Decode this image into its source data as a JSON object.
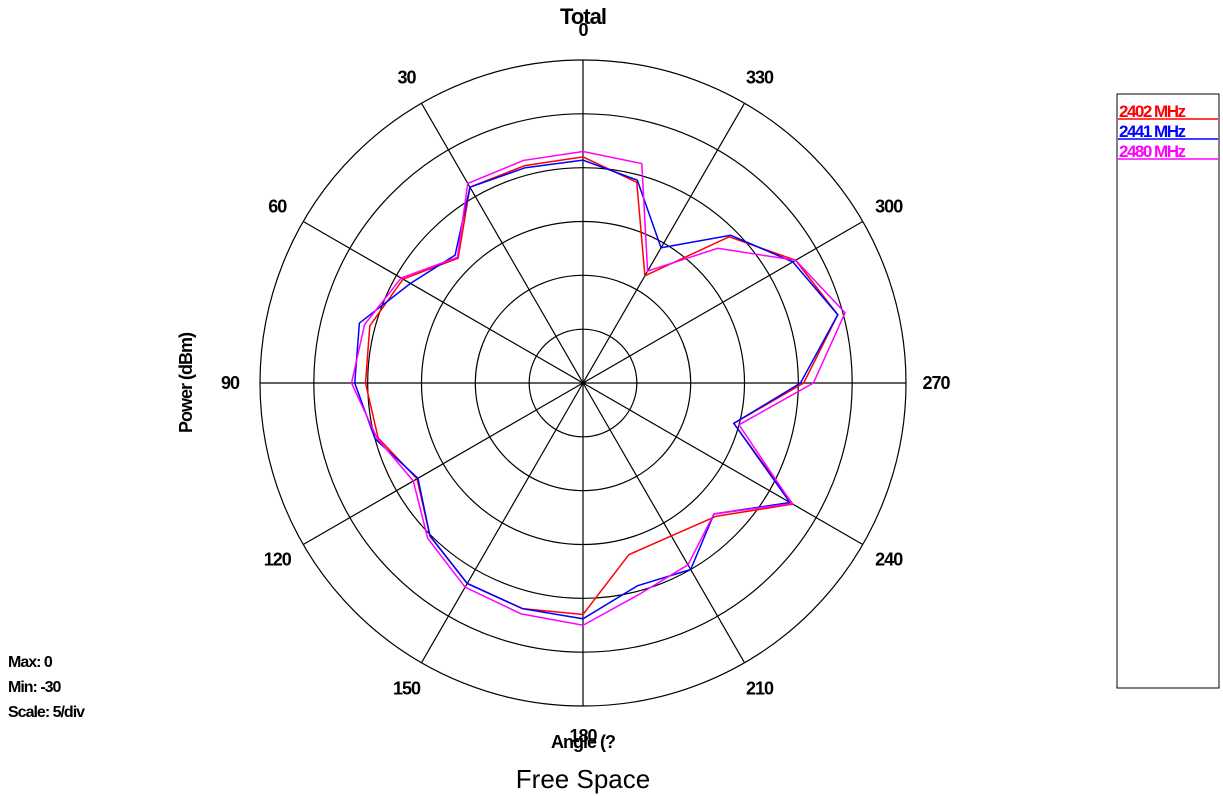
{
  "chart_data": {
    "type": "polar",
    "title": "Total",
    "subtitle": "Free Space",
    "xlabel": "Angle (?",
    "ylabel": "Power (dBm)",
    "rlim": [
      -30,
      0
    ],
    "r_step": 5,
    "angle_direction": "counterclockwise",
    "zero_angle": "top",
    "angle_ticks": [
      0,
      30,
      60,
      90,
      120,
      150,
      180,
      210,
      240,
      270,
      300,
      330
    ],
    "grid": true,
    "legend_position": "right",
    "stats": {
      "max": "Max: 0",
      "min": "Min: -30",
      "scale": "Scale: 5/div"
    },
    "angles": [
      0,
      15,
      30,
      45,
      60,
      75,
      90,
      105,
      120,
      135,
      150,
      165,
      180,
      195,
      210,
      225,
      240,
      255,
      270,
      285,
      300,
      315,
      330,
      345
    ],
    "series": [
      {
        "name": "2402 MHz",
        "color": "#ff0000",
        "values": [
          -9,
          -9.1,
          -9,
          -13.6,
          -10.7,
          -9.5,
          -9.8,
          -10.3,
          -12.2,
          -9.9,
          -8.5,
          -8.3,
          -8.5,
          -13.5,
          -13.6,
          -12.5,
          -7.5,
          -15.5,
          -9.5,
          -5.5,
          -7.2,
          -10.8,
          -18.5,
          -10.7
        ]
      },
      {
        "name": "2441 MHz",
        "color": "#0000ff",
        "values": [
          -9.3,
          -9.3,
          -9,
          -13.2,
          -11.5,
          -8.5,
          -8.8,
          -10,
          -12.3,
          -9.9,
          -8.5,
          -8.3,
          -8.1,
          -10.5,
          -10,
          -12.8,
          -7.8,
          -15.5,
          -9.8,
          -5.5,
          -7.5,
          -10.6,
          -15.5,
          -10.5
        ]
      },
      {
        "name": "2480 MHz",
        "color": "#ff00ff",
        "values": [
          -8.5,
          -8.6,
          -8.6,
          -13.5,
          -10.5,
          -9,
          -8.5,
          -10.2,
          -11.8,
          -9.6,
          -8.1,
          -7.8,
          -7.5,
          -9.7,
          -10.5,
          -12.8,
          -7.6,
          -15,
          -8.6,
          -4.8,
          -7.2,
          -12.3,
          -18,
          -8.9
        ]
      }
    ]
  }
}
